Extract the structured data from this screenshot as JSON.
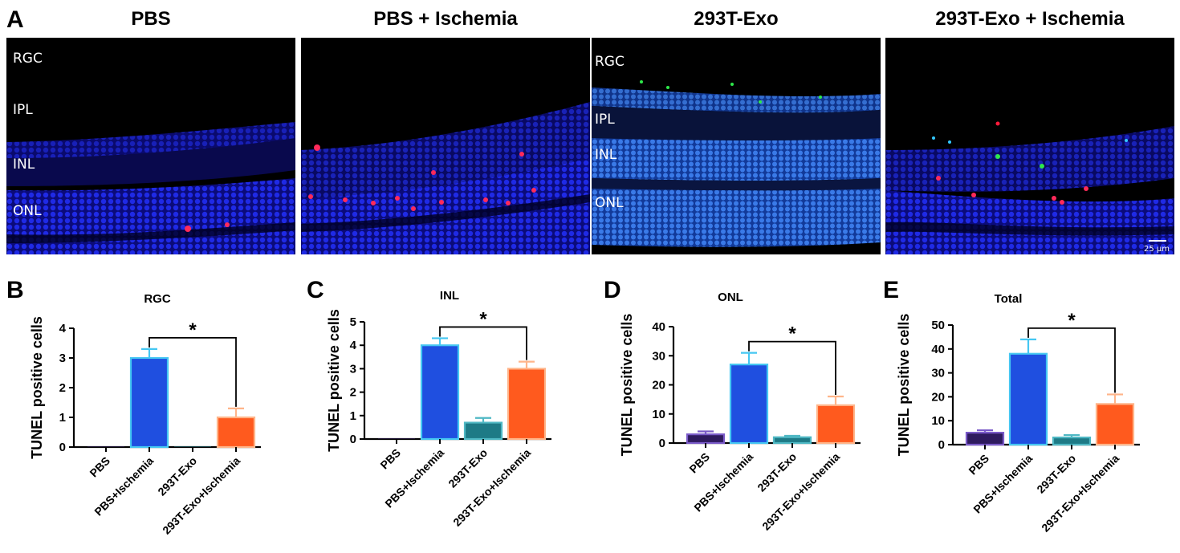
{
  "panel_letters": [
    "A",
    "B",
    "C",
    "D",
    "E"
  ],
  "micrographs": [
    {
      "title": "PBS",
      "layers": [
        "RGC",
        "IPL",
        "INL",
        "ONL"
      ],
      "scale": ""
    },
    {
      "title": "PBS + Ischemia",
      "layers": [],
      "scale": ""
    },
    {
      "title": "293T-Exo",
      "layers": [
        "RGC",
        "IPL",
        "INL",
        "ONL"
      ],
      "scale": ""
    },
    {
      "title": "293T-Exo + Ischemia",
      "layers": [],
      "scale": "25 µm"
    }
  ],
  "colors": {
    "PBS": "#2e1a5e",
    "PBS+Ischemia": "#1f4fe0",
    "PBS+Ischemia_edge": "#45c7f2",
    "293T-Exo": "#1e7a86",
    "293T-Exo+Ischemia": "#ff5a1e",
    "293T-Exo+Ischemia_edge": "#ffb58a"
  },
  "chart_data": [
    {
      "type": "bar",
      "title": "RGC",
      "ylabel": "TUNEL positive cells",
      "categories": [
        "PBS",
        "PBS+Ischemia",
        "293T-Exo",
        "293T-Exo+Ischemia"
      ],
      "values": [
        0,
        3,
        0,
        1
      ],
      "errors": [
        0,
        0.3,
        0,
        0.3
      ],
      "ylim": [
        0,
        4
      ],
      "yticks": [
        "0",
        "1",
        "2",
        "3",
        "4"
      ],
      "significance": {
        "from": "PBS+Ischemia",
        "to": "293T-Exo+Ischemia",
        "label": "*"
      }
    },
    {
      "type": "bar",
      "title": "INL",
      "ylabel": "TUNEL positive cells",
      "categories": [
        "PBS",
        "PBS+Ischemia",
        "293T-Exo",
        "293T-Exo+Ischemia"
      ],
      "values": [
        0,
        4,
        0.7,
        3
      ],
      "errors": [
        0,
        0.3,
        0.2,
        0.3
      ],
      "ylim": [
        0,
        5
      ],
      "yticks": [
        "0",
        "1",
        "2",
        "3",
        "4",
        "5"
      ],
      "significance": {
        "from": "PBS+Ischemia",
        "to": "293T-Exo+Ischemia",
        "label": "*"
      }
    },
    {
      "type": "bar",
      "title": "ONL",
      "ylabel": "TUNEL positive cells",
      "categories": [
        "PBS",
        "PBS+Ischemia",
        "293T-Exo",
        "293T-Exo+Ischemia"
      ],
      "values": [
        3,
        27,
        2,
        13
      ],
      "errors": [
        1,
        4,
        0.5,
        3
      ],
      "ylim": [
        0,
        40
      ],
      "yticks": [
        "0",
        "10",
        "20",
        "30",
        "40"
      ],
      "significance": {
        "from": "PBS+Ischemia",
        "to": "293T-Exo+Ischemia",
        "label": "*"
      }
    },
    {
      "type": "bar",
      "title": "Total",
      "ylabel": "TUNEL positive cells",
      "categories": [
        "PBS",
        "PBS+Ischemia",
        "293T-Exo",
        "293T-Exo+Ischemia"
      ],
      "values": [
        5,
        38,
        3,
        17
      ],
      "errors": [
        1,
        6,
        1,
        4
      ],
      "ylim": [
        0,
        50
      ],
      "yticks": [
        "0",
        "10",
        "20",
        "30",
        "40",
        "50"
      ],
      "significance": {
        "from": "PBS+Ischemia",
        "to": "293T-Exo+Ischemia",
        "label": "*"
      }
    }
  ]
}
